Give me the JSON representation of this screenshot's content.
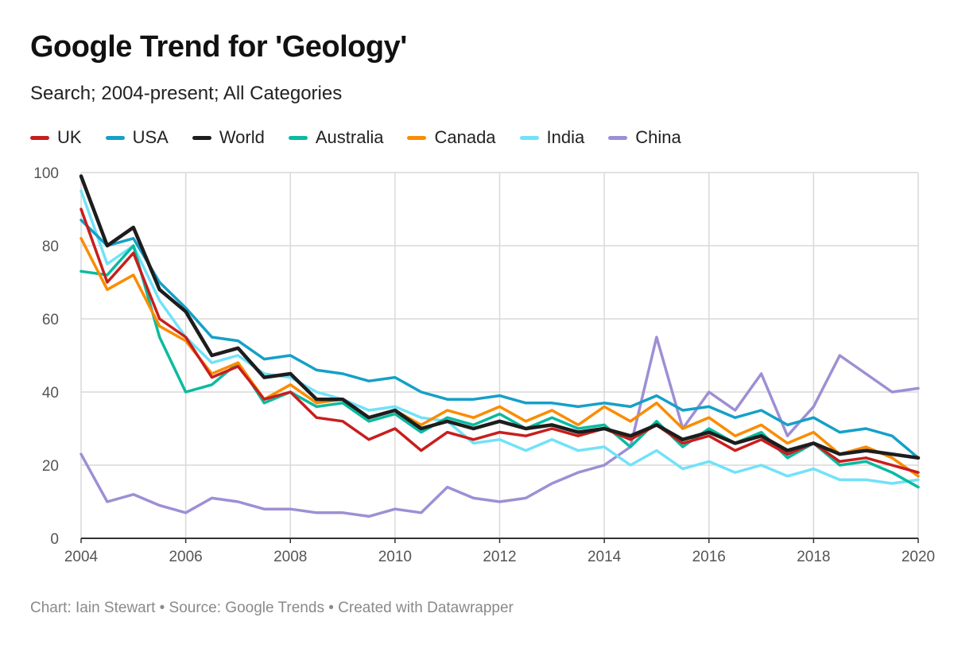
{
  "title": "Google Trend for 'Geology'",
  "subtitle": "Search; 2004-present; All Categories",
  "footer": "Chart: Iain Stewart • Source: Google Trends • Created with Datawrapper",
  "chart_data": {
    "type": "line",
    "title": "Google Trend for 'Geology'",
    "subtitle": "Search; 2004-present; All Categories",
    "xlabel": "",
    "ylabel": "",
    "xlim": [
      2004,
      2020
    ],
    "ylim": [
      0,
      100
    ],
    "x_ticks": [
      "2004",
      "2006",
      "2008",
      "2010",
      "2012",
      "2014",
      "2016",
      "2018",
      "2020"
    ],
    "x_tick_values": [
      2004,
      2006,
      2008,
      2010,
      2012,
      2014,
      2016,
      2018,
      2020
    ],
    "y_ticks": [
      "0",
      "20",
      "40",
      "60",
      "80",
      "100"
    ],
    "y_tick_values": [
      0,
      20,
      40,
      60,
      80,
      100
    ],
    "grid": true,
    "legend_position": "top-left",
    "x": [
      2004.0,
      2004.5,
      2005.0,
      2005.5,
      2006.0,
      2006.5,
      2007.0,
      2007.5,
      2008.0,
      2008.5,
      2009.0,
      2009.5,
      2010.0,
      2010.5,
      2011.0,
      2011.5,
      2012.0,
      2012.5,
      2013.0,
      2013.5,
      2014.0,
      2014.5,
      2015.0,
      2015.5,
      2016.0,
      2016.5,
      2017.0,
      2017.5,
      2018.0,
      2018.5,
      2019.0,
      2019.5,
      2020.0
    ],
    "series": [
      {
        "name": "UK",
        "color": "#c71e1d",
        "values": [
          90,
          70,
          78,
          60,
          55,
          44,
          47,
          38,
          40,
          33,
          32,
          27,
          30,
          24,
          29,
          27,
          29,
          28,
          30,
          28,
          30,
          27,
          31,
          26,
          28,
          24,
          27,
          23,
          26,
          21,
          22,
          20,
          18
        ]
      },
      {
        "name": "USA",
        "color": "#15a0c8",
        "values": [
          87,
          80,
          82,
          70,
          63,
          55,
          54,
          49,
          50,
          46,
          45,
          43,
          44,
          40,
          38,
          38,
          39,
          37,
          37,
          36,
          37,
          36,
          39,
          35,
          36,
          33,
          35,
          31,
          33,
          29,
          30,
          28,
          22
        ]
      },
      {
        "name": "World",
        "color": "#1d1d1d",
        "values": [
          99,
          80,
          85,
          68,
          62,
          50,
          52,
          44,
          45,
          38,
          38,
          33,
          35,
          30,
          32,
          30,
          32,
          30,
          31,
          29,
          30,
          28,
          31,
          27,
          29,
          26,
          28,
          24,
          26,
          23,
          24,
          23,
          22
        ]
      },
      {
        "name": "Australia",
        "color": "#09bb9f",
        "values": [
          73,
          72,
          80,
          55,
          40,
          42,
          48,
          37,
          40,
          36,
          37,
          32,
          34,
          29,
          33,
          31,
          34,
          30,
          33,
          30,
          31,
          25,
          32,
          25,
          30,
          26,
          29,
          22,
          26,
          20,
          21,
          18,
          14
        ]
      },
      {
        "name": "Canada",
        "color": "#fa8c00",
        "values": [
          82,
          68,
          72,
          58,
          54,
          45,
          48,
          38,
          42,
          37,
          38,
          33,
          35,
          31,
          35,
          33,
          36,
          32,
          35,
          31,
          36,
          32,
          37,
          30,
          33,
          28,
          31,
          26,
          29,
          23,
          25,
          22,
          17
        ]
      },
      {
        "name": "India",
        "color": "#71e2f8",
        "values": [
          95,
          75,
          80,
          65,
          55,
          48,
          50,
          45,
          44,
          40,
          38,
          35,
          36,
          33,
          32,
          26,
          27,
          24,
          27,
          24,
          25,
          20,
          24,
          19,
          21,
          18,
          20,
          17,
          19,
          16,
          16,
          15,
          16
        ]
      },
      {
        "name": "China",
        "color": "#9e8fd4",
        "values": [
          23,
          10,
          12,
          9,
          7,
          11,
          10,
          8,
          8,
          7,
          7,
          6,
          8,
          7,
          14,
          11,
          10,
          11,
          15,
          18,
          20,
          25,
          55,
          30,
          40,
          35,
          45,
          28,
          36,
          50,
          45,
          40,
          41
        ]
      }
    ]
  }
}
